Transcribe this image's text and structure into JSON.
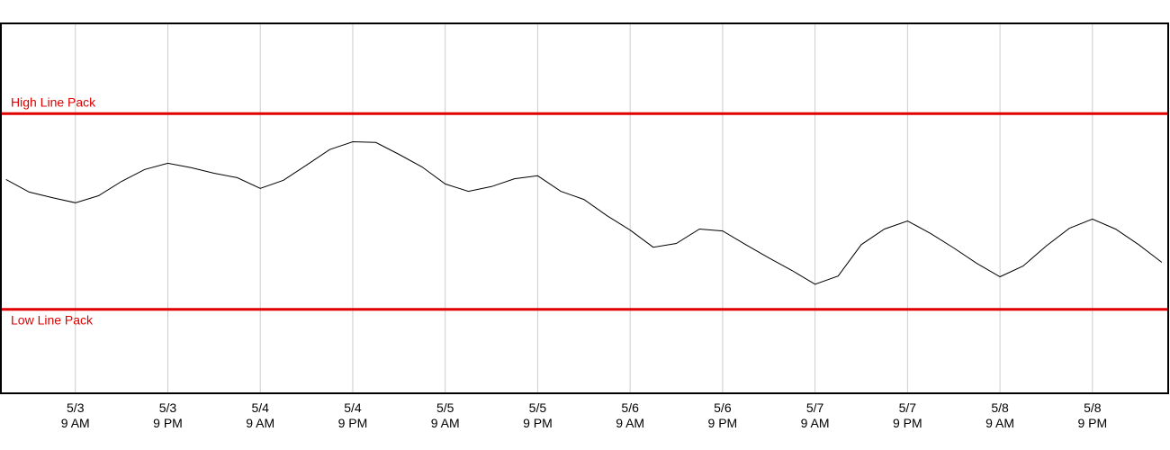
{
  "chart_data": {
    "type": "line",
    "xlim": [
      "5/2 23:20",
      "5/9 06:50"
    ],
    "ylim": [
      0,
      100
    ],
    "xticks": [
      {
        "value": "5/3 09:00",
        "date": "5/3",
        "time": "9 AM"
      },
      {
        "value": "5/3 21:00",
        "date": "5/3",
        "time": "9 PM"
      },
      {
        "value": "5/4 09:00",
        "date": "5/4",
        "time": "9 AM"
      },
      {
        "value": "5/4 21:00",
        "date": "5/4",
        "time": "9 PM"
      },
      {
        "value": "5/5 09:00",
        "date": "5/5",
        "time": "9 AM"
      },
      {
        "value": "5/5 21:00",
        "date": "5/5",
        "time": "9 PM"
      },
      {
        "value": "5/6 09:00",
        "date": "5/6",
        "time": "9 AM"
      },
      {
        "value": "5/6 21:00",
        "date": "5/6",
        "time": "9 PM"
      },
      {
        "value": "5/7 09:00",
        "date": "5/7",
        "time": "9 AM"
      },
      {
        "value": "5/7 21:00",
        "date": "5/7",
        "time": "9 PM"
      },
      {
        "value": "5/8 09:00",
        "date": "5/8",
        "time": "9 AM"
      },
      {
        "value": "5/8 21:00",
        "date": "5/8",
        "time": "9 PM"
      }
    ],
    "grid": true,
    "reference_lines": [
      {
        "label": "High Line Pack",
        "value": 75.6,
        "color": "#e00000"
      },
      {
        "label": "Low Line Pack",
        "value": 22.7,
        "color": "#e00000"
      }
    ],
    "x": [
      "5/3 00:00",
      "5/3 03:00",
      "5/3 06:00",
      "5/3 09:00",
      "5/3 12:00",
      "5/3 15:00",
      "5/3 18:00",
      "5/3 21:00",
      "5/4 00:00",
      "5/4 03:00",
      "5/4 06:00",
      "5/4 09:00",
      "5/4 12:00",
      "5/4 15:00",
      "5/4 18:00",
      "5/4 21:00",
      "5/5 00:00",
      "5/5 03:00",
      "5/5 06:00",
      "5/5 09:00",
      "5/5 12:00",
      "5/5 15:00",
      "5/5 18:00",
      "5/5 21:00",
      "5/6 00:00",
      "5/6 03:00",
      "5/6 06:00",
      "5/6 09:00",
      "5/6 12:00",
      "5/6 15:00",
      "5/6 18:00",
      "5/6 21:00",
      "5/7 00:00",
      "5/7 03:00",
      "5/7 06:00",
      "5/7 09:00",
      "5/7 12:00",
      "5/7 15:00",
      "5/7 18:00",
      "5/7 21:00",
      "5/8 00:00",
      "5/8 03:00",
      "5/8 06:00",
      "5/8 09:00",
      "5/8 12:00",
      "5/8 15:00",
      "5/8 18:00",
      "5/8 21:00",
      "5/9 00:00",
      "5/9 03:00",
      "5/9 06:00"
    ],
    "series": [
      {
        "color": "#000000",
        "values": [
          57.8,
          54.4,
          52.9,
          51.5,
          53.4,
          57.3,
          60.5,
          62.2,
          61.0,
          59.5,
          58.3,
          55.4,
          57.6,
          61.7,
          65.9,
          68.0,
          67.8,
          64.6,
          61.2,
          56.6,
          54.6,
          55.9,
          58.0,
          58.8,
          54.6,
          52.4,
          48.0,
          44.1,
          39.5,
          40.5,
          44.4,
          43.9,
          40.2,
          36.6,
          33.2,
          29.5,
          31.7,
          40.2,
          44.4,
          46.6,
          43.2,
          39.3,
          35.1,
          31.5,
          34.4,
          39.8,
          44.6,
          47.1,
          44.4,
          40.2,
          35.4
        ]
      }
    ]
  }
}
